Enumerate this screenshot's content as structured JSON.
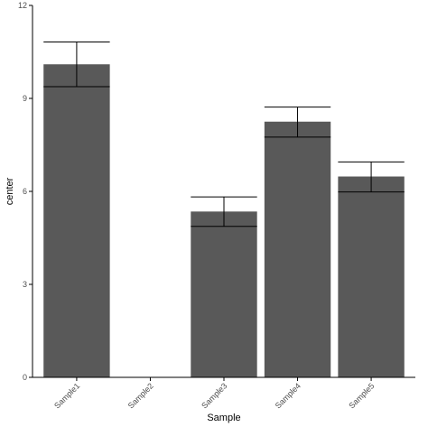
{
  "chart_data": {
    "type": "bar",
    "categories": [
      "Sample1",
      "Sample2",
      "Sample3",
      "Sample4",
      "Sample5"
    ],
    "values": [
      10.1,
      null,
      5.35,
      8.25,
      6.48
    ],
    "error_low": [
      9.38,
      null,
      4.87,
      7.75,
      5.98
    ],
    "error_high": [
      10.82,
      null,
      5.82,
      8.72,
      6.95
    ],
    "xlabel": "Sample",
    "ylabel": "center",
    "ylim": [
      0,
      12
    ],
    "yticks": [
      0,
      3,
      6,
      9,
      12
    ],
    "bar_color": "#595959",
    "grid": false
  }
}
